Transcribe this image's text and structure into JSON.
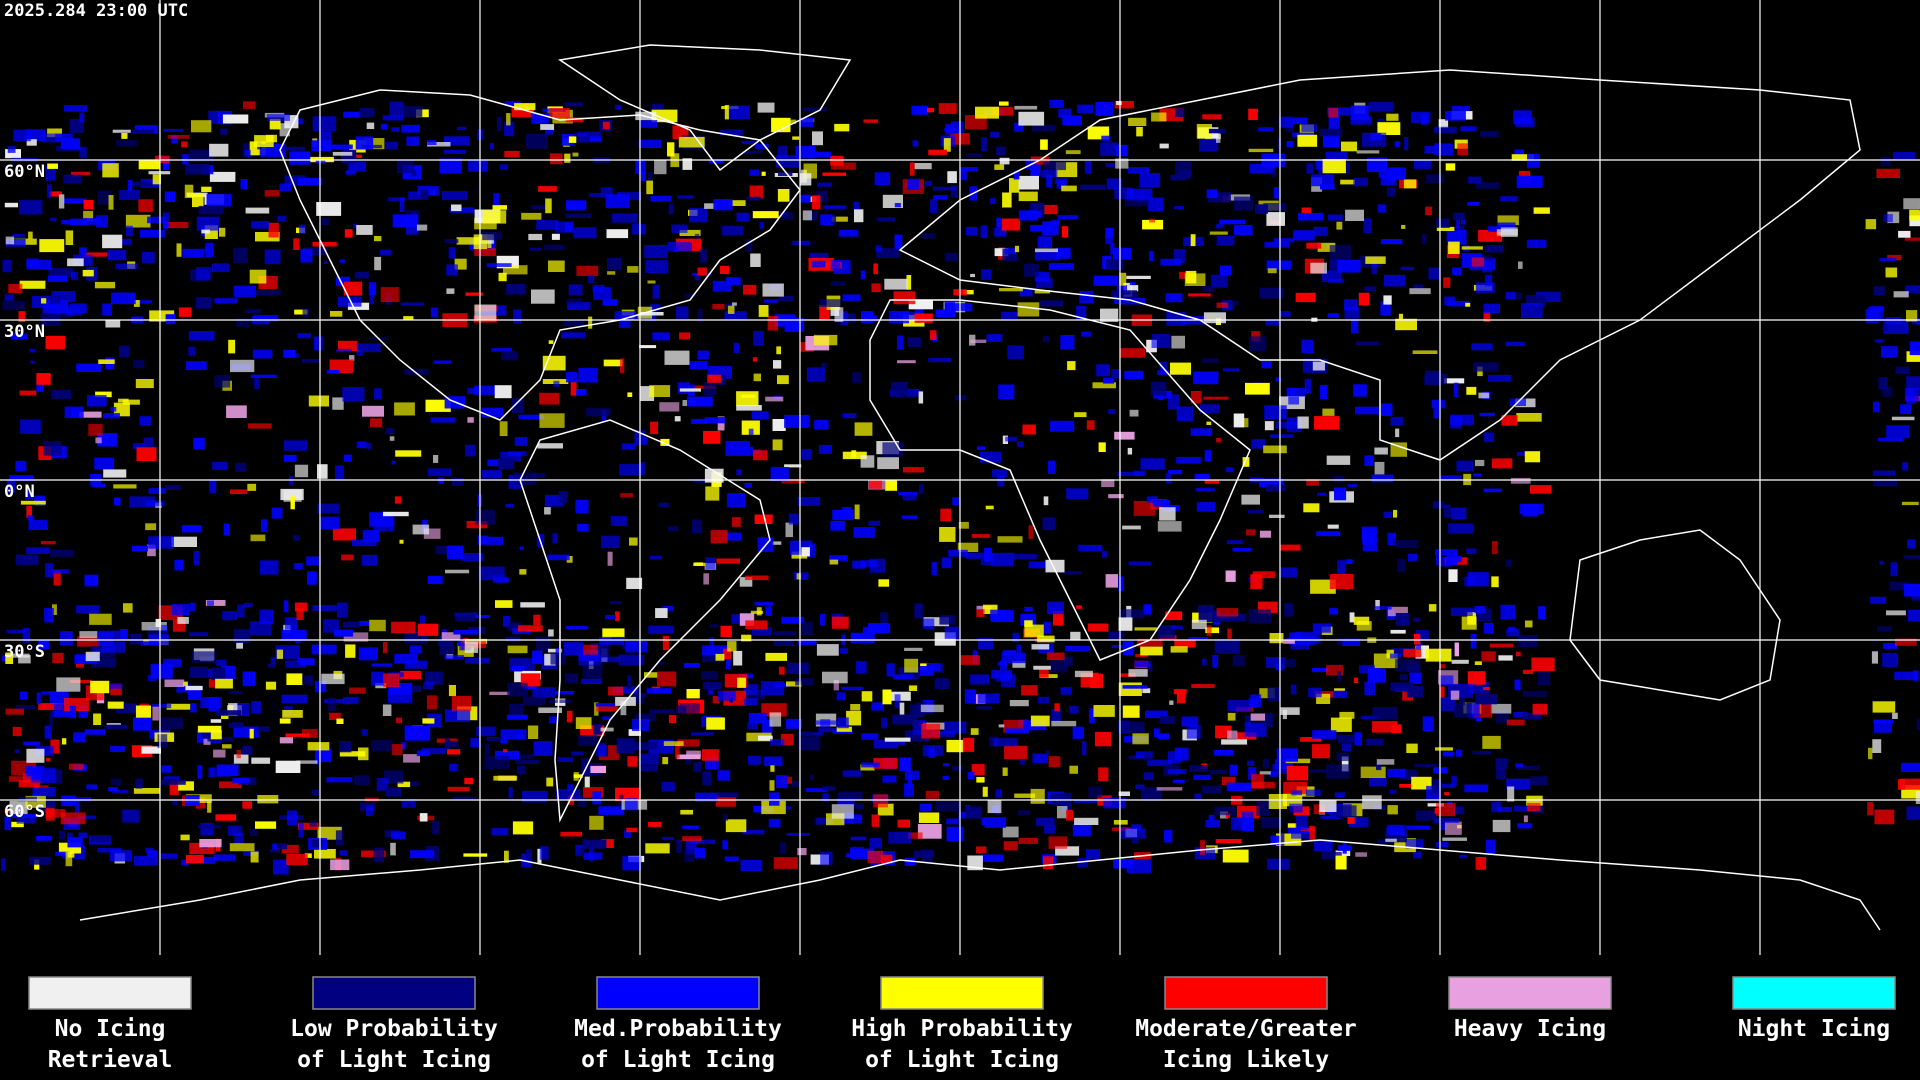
{
  "header": {
    "timestamp": "2025.284 23:00 UTC"
  },
  "map": {
    "latitude_labels": [
      "60°N",
      "30°N",
      "0°N",
      "30°S",
      "60°S"
    ]
  },
  "legend": {
    "items": [
      {
        "color": "#f0f0f0",
        "label": [
          "No Icing",
          "Retrieval"
        ]
      },
      {
        "color": "#000080",
        "label": [
          "Low Probability",
          "of Light Icing"
        ]
      },
      {
        "color": "#0000ff",
        "label": [
          "Med.Probability",
          "of Light Icing"
        ]
      },
      {
        "color": "#ffff00",
        "label": [
          "High Probability",
          "of Light Icing"
        ]
      },
      {
        "color": "#ff0000",
        "label": [
          "Moderate/Greater",
          "Icing Likely"
        ]
      },
      {
        "color": "#e8a0e0",
        "label": [
          "Heavy Icing",
          ""
        ]
      },
      {
        "color": "#00ffff",
        "label": [
          "Night Icing",
          ""
        ]
      }
    ]
  }
}
